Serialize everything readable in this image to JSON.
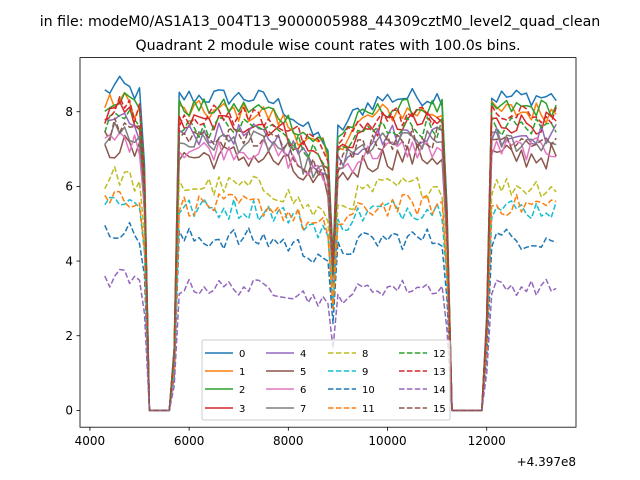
{
  "chart_data": {
    "type": "line",
    "title": "in file: modeM0/AS1A13_004T13_9000005988_44309cztM0_level2_quad_clean",
    "subtitle": "Quadrant 2 module wise count rates with 100.0s bins.",
    "xlabel": "",
    "ylabel": "",
    "x_offset_label": "+4.397e8",
    "xlim": [
      3800,
      13800
    ],
    "ylim": [
      -0.45,
      9.45
    ],
    "xticks": [
      4000,
      6000,
      8000,
      10000,
      12000
    ],
    "xtick_labels": [
      "4000",
      "6000",
      "8000",
      "10000",
      "12000"
    ],
    "yticks": [
      0,
      2,
      4,
      6,
      8
    ],
    "ytick_labels": [
      "0",
      "2",
      "4",
      "6",
      "8"
    ],
    "grid": false,
    "legend": {
      "location": "lower center",
      "columns": 4
    },
    "x": {
      "start": 4300,
      "step": 100,
      "end": 13400
    },
    "gaps": [
      {
        "from": 5200,
        "to": 5600,
        "value": 0
      },
      {
        "from": 11300,
        "to": 11900,
        "value": 0
      }
    ],
    "gap_edges": [
      {
        "x": 5100,
        "fraction": 0.78
      },
      {
        "x": 5700,
        "fraction": 0.2
      },
      {
        "x": 8800,
        "fraction": 0.95
      },
      {
        "x": 8900,
        "fraction": 0.55
      },
      {
        "x": 11200,
        "fraction": 0.65
      },
      {
        "x": 12000,
        "fraction": 0.3
      }
    ],
    "series": [
      {
        "name": "0",
        "color": "#1f77b4",
        "style": "solid",
        "level": 8.4,
        "noise": 0.25,
        "valley": 7.3
      },
      {
        "name": "1",
        "color": "#ff7f0e",
        "style": "solid",
        "level": 8.0,
        "noise": 0.3,
        "valley": 7.0
      },
      {
        "name": "2",
        "color": "#2ca02c",
        "style": "solid",
        "level": 8.1,
        "noise": 0.25,
        "valley": 7.2
      },
      {
        "name": "3",
        "color": "#d62728",
        "style": "solid",
        "level": 7.7,
        "noise": 0.3,
        "valley": 6.8
      },
      {
        "name": "4",
        "color": "#9467bd",
        "style": "solid",
        "level": 7.4,
        "noise": 0.3,
        "valley": 6.6
      },
      {
        "name": "5",
        "color": "#8c564b",
        "style": "solid",
        "level": 6.8,
        "noise": 0.35,
        "valley": 6.0
      },
      {
        "name": "6",
        "color": "#e377c2",
        "style": "solid",
        "level": 7.0,
        "noise": 0.3,
        "valley": 6.3
      },
      {
        "name": "7",
        "color": "#7f7f7f",
        "style": "solid",
        "level": 7.2,
        "noise": 0.3,
        "valley": 6.4
      },
      {
        "name": "8",
        "color": "#bcbd22",
        "style": "dashed",
        "level": 6.0,
        "noise": 0.3,
        "valley": 5.3
      },
      {
        "name": "9",
        "color": "#17becf",
        "style": "dashed",
        "level": 5.4,
        "noise": 0.3,
        "valley": 4.9
      },
      {
        "name": "10",
        "color": "#1f77b4",
        "style": "dashed",
        "level": 4.6,
        "noise": 0.3,
        "valley": 4.2
      },
      {
        "name": "11",
        "color": "#ff7f0e",
        "style": "dashed",
        "level": 5.5,
        "noise": 0.3,
        "valley": 4.9
      },
      {
        "name": "12",
        "color": "#2ca02c",
        "style": "dashed",
        "level": 7.6,
        "noise": 0.3,
        "valley": 6.8
      },
      {
        "name": "13",
        "color": "#d62728",
        "style": "dashed",
        "level": 7.9,
        "noise": 0.3,
        "valley": 7.0
      },
      {
        "name": "14",
        "color": "#9467bd",
        "style": "dashed",
        "level": 3.3,
        "noise": 0.22,
        "valley": 3.0
      },
      {
        "name": "15",
        "color": "#8c564b",
        "style": "dashed",
        "level": 7.3,
        "noise": 0.3,
        "valley": 6.5
      }
    ]
  }
}
